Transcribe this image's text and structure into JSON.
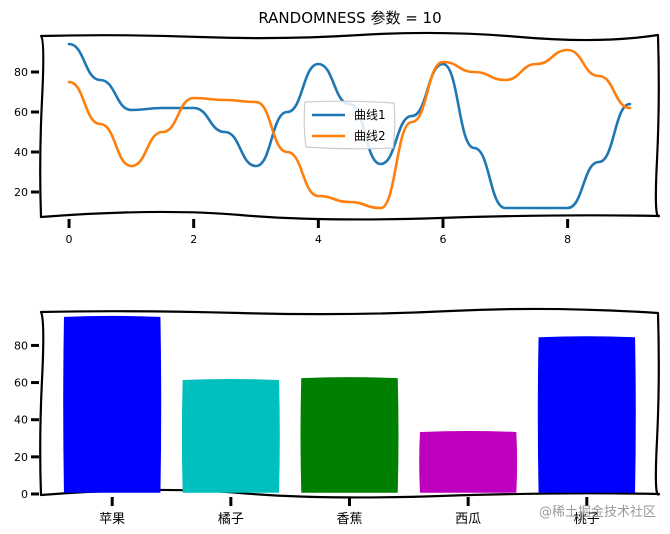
{
  "chart_data": [
    {
      "type": "line",
      "title": "RANDOMNESS 参数 = 10",
      "xlim": [
        -0.45,
        9.45
      ],
      "ylim": [
        8,
        98
      ],
      "xticks": [
        0,
        2,
        4,
        6,
        8
      ],
      "yticks": [
        20,
        40,
        60,
        80
      ],
      "legend_position": "center",
      "series": [
        {
          "name": "曲线1",
          "color": "#1f77b4",
          "x": [
            0,
            0.5,
            1,
            1.5,
            2,
            2.5,
            3,
            3.5,
            4,
            4.5,
            5,
            5.5,
            6,
            6.5,
            7,
            7.5,
            8,
            8.5,
            9
          ],
          "y": [
            94,
            76,
            61,
            62,
            62,
            50,
            33,
            60,
            84,
            64,
            34,
            58,
            84,
            42,
            12,
            12,
            12,
            35,
            64
          ]
        },
        {
          "name": "曲线2",
          "color": "#ff7f0e",
          "x": [
            0,
            0.5,
            1,
            1.5,
            2,
            2.5,
            3,
            3.5,
            4,
            4.5,
            5,
            5.5,
            6,
            6.5,
            7,
            7.5,
            8,
            8.5,
            9
          ],
          "y": [
            75,
            54,
            33,
            50,
            67,
            66,
            65,
            40,
            18,
            15,
            12,
            55,
            85,
            80,
            76,
            84,
            91,
            78,
            62
          ]
        }
      ]
    },
    {
      "type": "bar",
      "categories": [
        "苹果",
        "橘子",
        "香蕉",
        "西瓜",
        "桃子"
      ],
      "values": [
        95,
        61,
        62,
        33,
        84
      ],
      "colors": [
        "#0000ff",
        "#00bfbf",
        "#008000",
        "#bf00bf",
        "#0000ff"
      ],
      "ylim": [
        0,
        98
      ],
      "yticks": [
        0,
        20,
        40,
        60,
        80
      ]
    }
  ],
  "watermark": "@稀土掘金技术社区"
}
